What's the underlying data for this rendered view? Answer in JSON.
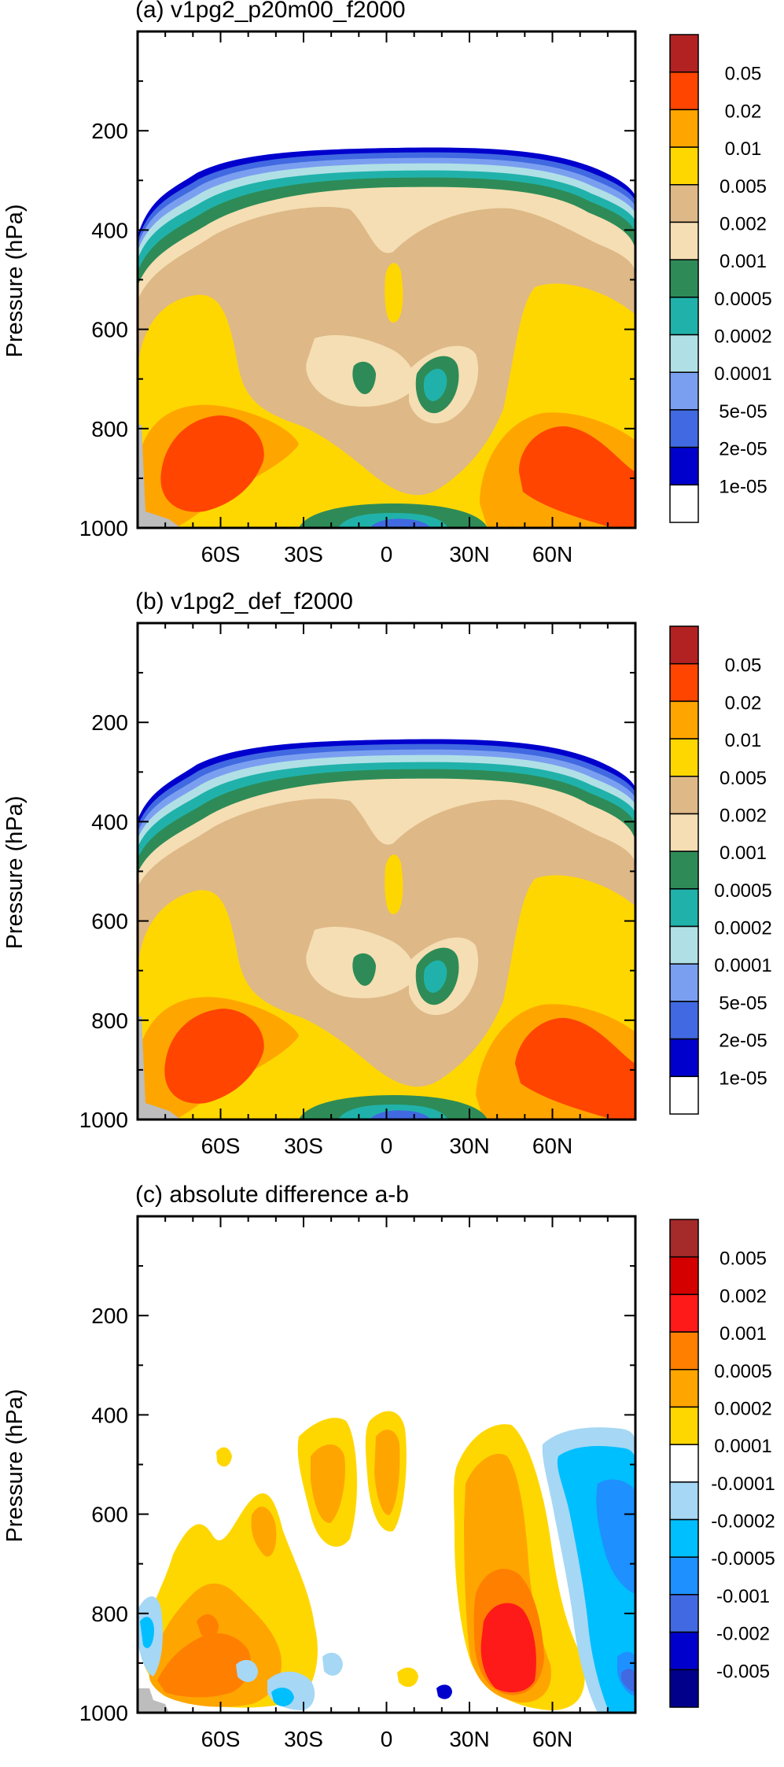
{
  "chart_data": [
    {
      "type": "contour",
      "title": "(a) v1pg2_p20m00_f2000",
      "ylabel": "Pressure (hPa)",
      "y_ticks": [
        200,
        400,
        600,
        800,
        1000
      ],
      "x_ticks": [
        "60S",
        "30S",
        "0",
        "30N",
        "60N"
      ],
      "x_tick_values": [
        -60,
        -30,
        0,
        30,
        60
      ],
      "xlim": [
        -90,
        90
      ],
      "ylim": [
        1000,
        0
      ],
      "colorbar_labels": [
        "0.05",
        "0.02",
        "0.01",
        "0.005",
        "0.002",
        "0.001",
        "0.0005",
        "0.0002",
        "0.0001",
        "5e-05",
        "2e-05",
        "1e-05"
      ],
      "colorbar_colors": [
        "#b22222",
        "#ff4500",
        "#ffa500",
        "#ffd700",
        "#deb887",
        "#f5deb3",
        "#2e8b57",
        "#20b2aa",
        "#b0e0e6",
        "#7b9ff0",
        "#4169e1",
        "#0000cd",
        "#ffffff"
      ]
    },
    {
      "type": "contour",
      "title": "(b) v1pg2_def_f2000",
      "ylabel": "Pressure (hPa)",
      "y_ticks": [
        200,
        400,
        600,
        800,
        1000
      ],
      "x_ticks": [
        "60S",
        "30S",
        "0",
        "30N",
        "60N"
      ],
      "x_tick_values": [
        -60,
        -30,
        0,
        30,
        60
      ],
      "xlim": [
        -90,
        90
      ],
      "ylim": [
        1000,
        0
      ],
      "colorbar_labels": [
        "0.05",
        "0.02",
        "0.01",
        "0.005",
        "0.002",
        "0.001",
        "0.0005",
        "0.0002",
        "0.0001",
        "5e-05",
        "2e-05",
        "1e-05"
      ],
      "colorbar_colors": [
        "#b22222",
        "#ff4500",
        "#ffa500",
        "#ffd700",
        "#deb887",
        "#f5deb3",
        "#2e8b57",
        "#20b2aa",
        "#b0e0e6",
        "#7b9ff0",
        "#4169e1",
        "#0000cd",
        "#ffffff"
      ]
    },
    {
      "type": "contour",
      "title": "(c) absolute difference a-b",
      "ylabel": "Pressure (hPa)",
      "y_ticks": [
        200,
        400,
        600,
        800,
        1000
      ],
      "x_ticks": [
        "60S",
        "30S",
        "0",
        "30N",
        "60N"
      ],
      "x_tick_values": [
        -60,
        -30,
        0,
        30,
        60
      ],
      "xlim": [
        -90,
        90
      ],
      "ylim": [
        1000,
        0
      ],
      "colorbar_labels": [
        "0.005",
        "0.002",
        "0.001",
        "0.0005",
        "0.0002",
        "0.0001",
        "-0.0001",
        "-0.0002",
        "-0.0005",
        "-0.001",
        "-0.002",
        "-0.005"
      ],
      "colorbar_colors": [
        "#a52a2a",
        "#d40000",
        "#ff1a1a",
        "#ff7f00",
        "#ffa500",
        "#ffd700",
        "#ffffff",
        "#a6d7f5",
        "#00bfff",
        "#1e90ff",
        "#4169e1",
        "#0000cd",
        "#00008b"
      ]
    }
  ]
}
